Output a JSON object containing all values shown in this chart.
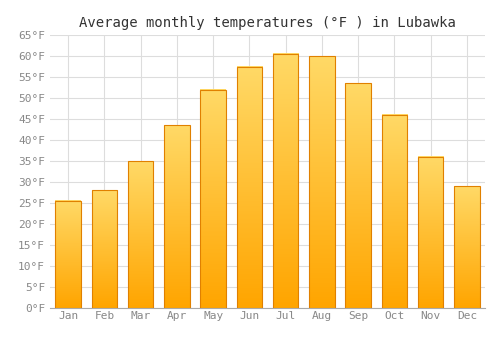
{
  "title": "Average monthly temperatures (°F ) in Lubawka",
  "months": [
    "Jan",
    "Feb",
    "Mar",
    "Apr",
    "May",
    "Jun",
    "Jul",
    "Aug",
    "Sep",
    "Oct",
    "Nov",
    "Dec"
  ],
  "values": [
    25.5,
    28.0,
    35.0,
    43.5,
    52.0,
    57.5,
    60.5,
    60.0,
    53.5,
    46.0,
    36.0,
    29.0
  ],
  "bar_color_top": "#FFD966",
  "bar_color_bottom": "#FFA500",
  "bar_edge_color": "#E08000",
  "background_color": "#FFFFFF",
  "grid_color": "#DDDDDD",
  "ylim": [
    0,
    65
  ],
  "ytick_step": 5,
  "title_fontsize": 10,
  "tick_fontsize": 8,
  "tick_font_family": "monospace",
  "title_color": "#333333",
  "tick_color": "#888888"
}
